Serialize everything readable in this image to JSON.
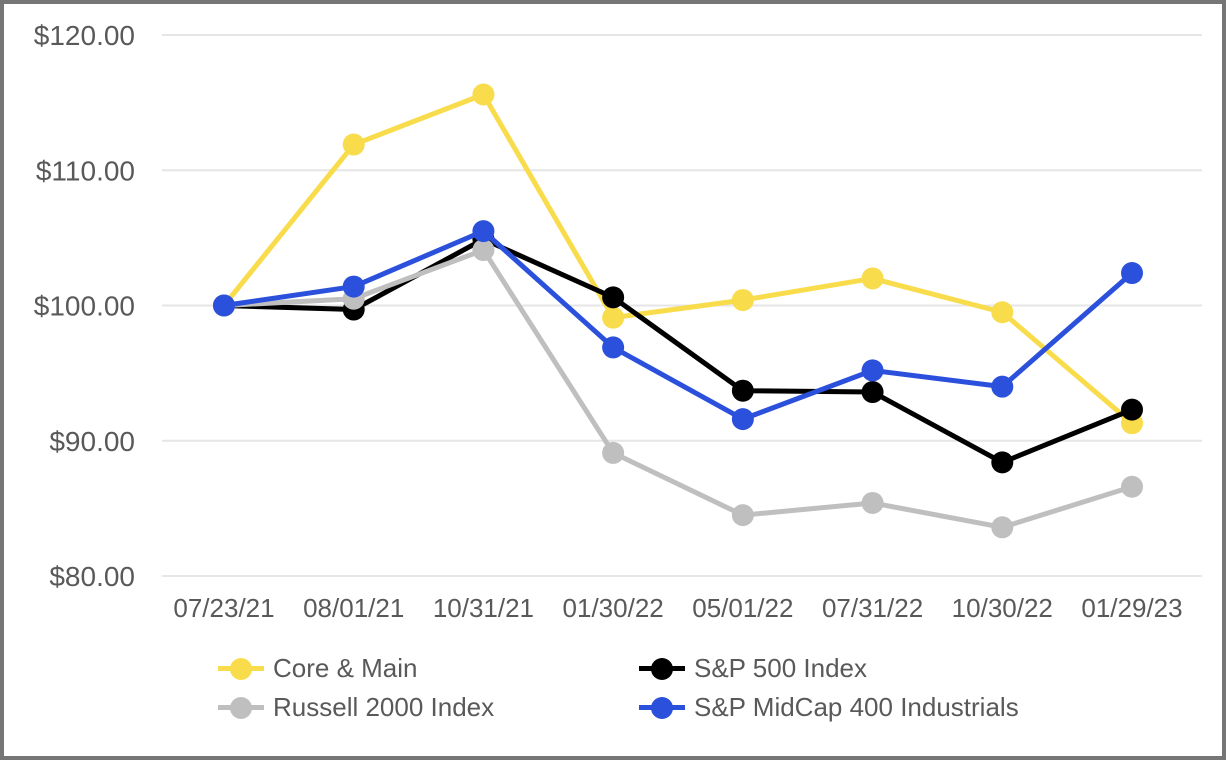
{
  "colors": {
    "axis_text": "#595959",
    "gridline": "#e6e6e6",
    "frame_border": "#767676",
    "background": "#ffffff"
  },
  "chart_data": {
    "type": "line",
    "title": "",
    "xlabel": "",
    "ylabel": "",
    "grid": true,
    "legend_position": "bottom",
    "ylim": [
      80,
      120
    ],
    "x_tick_labels": [
      "07/23/21",
      "08/01/21",
      "10/31/21",
      "01/30/22",
      "05/01/22",
      "07/31/22",
      "10/30/22",
      "01/29/23"
    ],
    "y_ticks": [
      {
        "value": 120,
        "label": "$120.00"
      },
      {
        "value": 110,
        "label": "$110.00"
      },
      {
        "value": 100,
        "label": "$100.00"
      },
      {
        "value": 90,
        "label": "$90.00"
      },
      {
        "value": 80,
        "label": "$80.00"
      }
    ],
    "series": [
      {
        "name": "Core & Main",
        "color": "#f8dc4b",
        "values": [
          100.0,
          111.9,
          115.6,
          99.1,
          100.4,
          102.0,
          99.5,
          91.3
        ]
      },
      {
        "name": "S&P 500 Index",
        "color": "#000000",
        "values": [
          100.0,
          99.7,
          104.9,
          100.6,
          93.7,
          93.6,
          88.4,
          92.3
        ]
      },
      {
        "name": "Russell 2000 Index",
        "color": "#bfbfbf",
        "values": [
          100.0,
          100.5,
          104.1,
          89.1,
          84.5,
          85.4,
          83.6,
          86.6
        ]
      },
      {
        "name": "S&P MidCap 400 Industrials",
        "color": "#2b50dc",
        "values": [
          100.0,
          101.4,
          105.5,
          96.9,
          91.6,
          95.2,
          94.0,
          102.4
        ]
      }
    ]
  }
}
